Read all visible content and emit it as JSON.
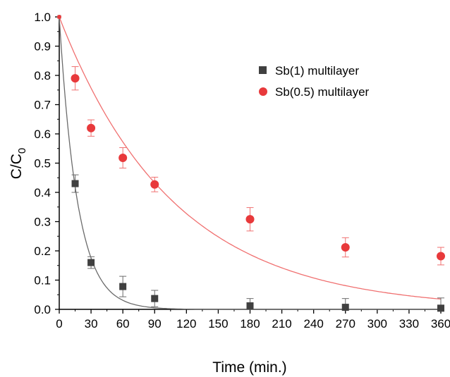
{
  "chart_data": {
    "type": "scatter",
    "xlabel": "Time (min.)",
    "ylabel": "C/C",
    "ylabel_subscript": "0",
    "xlim": [
      0,
      360
    ],
    "ylim": [
      0,
      1.0
    ],
    "x_ticks": [
      "0",
      "30",
      "60",
      "90",
      "120",
      "150",
      "180",
      "210",
      "240",
      "270",
      "300",
      "330",
      "360"
    ],
    "y_ticks": [
      "0.0",
      "0.1",
      "0.2",
      "0.3",
      "0.4",
      "0.5",
      "0.6",
      "0.7",
      "0.8",
      "0.9",
      "1.0"
    ],
    "grid": false,
    "legend_position": "top-right",
    "series": [
      {
        "name": "Sb(1) multilayer",
        "marker": "square",
        "color": "#404040",
        "fit_color": "#6b6b6b",
        "points": [
          {
            "x": 0,
            "y": 1.0,
            "err": 0
          },
          {
            "x": 15,
            "y": 0.43,
            "err": 0.03
          },
          {
            "x": 30,
            "y": 0.16,
            "err": 0.02
          },
          {
            "x": 60,
            "y": 0.078,
            "err": 0.035
          },
          {
            "x": 90,
            "y": 0.037,
            "err": 0.028
          },
          {
            "x": 180,
            "y": 0.012,
            "err": 0.025
          },
          {
            "x": 270,
            "y": 0.007,
            "err": 0.03
          },
          {
            "x": 360,
            "y": 0.004,
            "err": 0.035
          }
        ],
        "fit": {
          "model": "exponential",
          "k": 0.058
        }
      },
      {
        "name": "Sb(0.5) multilayer",
        "marker": "circle",
        "color": "#e8393b",
        "fit_color": "#f07070",
        "points": [
          {
            "x": 0,
            "y": 1.0,
            "err": 0
          },
          {
            "x": 15,
            "y": 0.79,
            "err": 0.04
          },
          {
            "x": 30,
            "y": 0.62,
            "err": 0.028
          },
          {
            "x": 60,
            "y": 0.518,
            "err": 0.035
          },
          {
            "x": 90,
            "y": 0.427,
            "err": 0.025
          },
          {
            "x": 180,
            "y": 0.308,
            "err": 0.04
          },
          {
            "x": 270,
            "y": 0.212,
            "err": 0.033
          },
          {
            "x": 360,
            "y": 0.182,
            "err": 0.03
          }
        ],
        "fit": {
          "model": "exponential",
          "k": 0.0093
        }
      }
    ]
  }
}
